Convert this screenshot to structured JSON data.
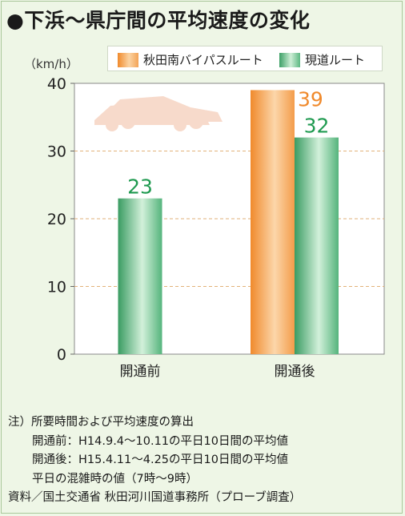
{
  "title": "●下浜～県庁間の平均速度の変化",
  "unit_label": "（km/h）",
  "legend": [
    {
      "label": "秋田南バイパスルート",
      "color": "#f08a2c"
    },
    {
      "label": "現道ルート",
      "color": "#3d9f66"
    }
  ],
  "chart_data": {
    "type": "bar",
    "categories": [
      "開通前",
      "開通後"
    ],
    "series": [
      {
        "name": "秋田南バイパスルート",
        "values": [
          null,
          39
        ],
        "color": "#f08a2c",
        "label_color": "#f08a2c"
      },
      {
        "name": "現道ルート",
        "values": [
          23,
          32
        ],
        "color": "#3d9f66",
        "label_color": "#1f9a50"
      }
    ],
    "ylim": [
      0,
      40
    ],
    "yticks": [
      "0",
      "10",
      "20",
      "30",
      "40"
    ],
    "grid": true,
    "legend_position": "top-right"
  },
  "notes": [
    "注）所要時間および平均速度の算出",
    "開通前：H14.9.4～10.11の平日10日間の平均値",
    "開通後：H15.4.11～4.25の平日10日間の平均値",
    "平日の混雑時の値（7時～9時）",
    "資料／国土交通省 秋田河川国道事務所（プローブ調査）"
  ],
  "colors": {
    "plot_background": "#ffffff",
    "grid": "#e2b27a",
    "car": "#f7d7c6"
  }
}
